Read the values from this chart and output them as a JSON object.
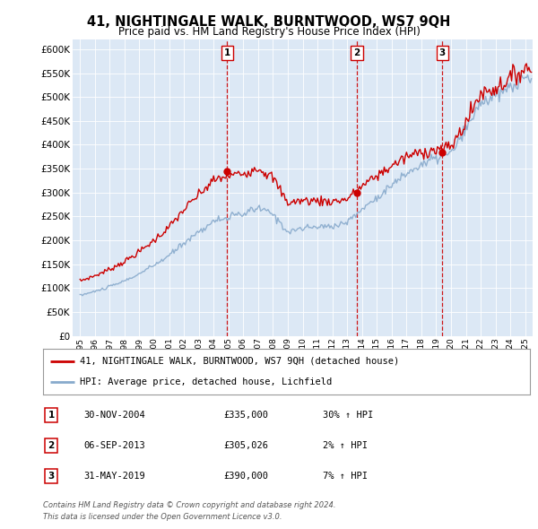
{
  "title": "41, NIGHTINGALE WALK, BURNTWOOD, WS7 9QH",
  "subtitle": "Price paid vs. HM Land Registry's House Price Index (HPI)",
  "legend_line1": "41, NIGHTINGALE WALK, BURNTWOOD, WS7 9QH (detached house)",
  "legend_line2": "HPI: Average price, detached house, Lichfield",
  "footnote1": "Contains HM Land Registry data © Crown copyright and database right 2024.",
  "footnote2": "This data is licensed under the Open Government Licence v3.0.",
  "sale_color": "#cc0000",
  "hpi_color": "#88aacc",
  "vline_color": "#cc0000",
  "background_plot": "#dce8f5",
  "sale_table": [
    {
      "num": "1",
      "date": "30-NOV-2004",
      "price": "£335,000",
      "change": "30% ↑ HPI"
    },
    {
      "num": "2",
      "date": "06-SEP-2013",
      "price": "£305,026",
      "change": "2% ↑ HPI"
    },
    {
      "num": "3",
      "date": "31-MAY-2019",
      "price": "£390,000",
      "change": "7% ↑ HPI"
    }
  ],
  "sales": [
    {
      "date": 2004.92,
      "price": 335000,
      "label": "1"
    },
    {
      "date": 2013.67,
      "price": 305026,
      "label": "2"
    },
    {
      "date": 2019.42,
      "price": 390000,
      "label": "3"
    }
  ],
  "ylim": [
    0,
    620000
  ],
  "yticks": [
    0,
    50000,
    100000,
    150000,
    200000,
    250000,
    300000,
    350000,
    400000,
    450000,
    500000,
    550000,
    600000
  ],
  "xlim_start": 1994.5,
  "xlim_end": 2025.5,
  "hpi_anchor_years": [
    1995,
    1996,
    1997,
    1998,
    1999,
    2000,
    2001,
    2002,
    2003,
    2004,
    2005,
    2006,
    2007,
    2008,
    2009,
    2010,
    2011,
    2012,
    2013,
    2014,
    2015,
    2016,
    2017,
    2018,
    2019,
    2020,
    2021,
    2022,
    2023,
    2024,
    2025
  ],
  "hpi_anchor_prices": [
    85000,
    93000,
    103000,
    115000,
    130000,
    148000,
    168000,
    195000,
    218000,
    240000,
    248000,
    255000,
    268000,
    255000,
    218000,
    225000,
    228000,
    230000,
    238000,
    265000,
    290000,
    315000,
    340000,
    358000,
    372000,
    382000,
    430000,
    490000,
    500000,
    520000,
    540000
  ]
}
